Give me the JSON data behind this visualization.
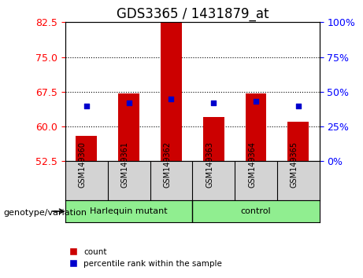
{
  "title": "GDS3365 / 1431879_at",
  "samples": [
    "GSM149360",
    "GSM149361",
    "GSM149362",
    "GSM149363",
    "GSM149364",
    "GSM149365"
  ],
  "red_values": [
    58.0,
    67.2,
    83.5,
    62.0,
    67.2,
    61.0
  ],
  "blue_values_pct": [
    40,
    42,
    45,
    42,
    43,
    40
  ],
  "ylim_left": [
    52.5,
    82.5
  ],
  "ylim_right": [
    0,
    100
  ],
  "yticks_left": [
    52.5,
    60.0,
    67.5,
    75.0,
    82.5
  ],
  "yticks_right": [
    0,
    25,
    50,
    75,
    100
  ],
  "yticks_grid": [
    60.0,
    67.5,
    75.0
  ],
  "bar_color": "#cc0000",
  "dot_color": "#0000cc",
  "bar_width": 0.5,
  "group1_label": "Harlequin mutant",
  "group2_label": "control",
  "genotype_label": "genotype/variation",
  "legend_count": "count",
  "legend_pct": "percentile rank within the sample",
  "title_fontsize": 12,
  "tick_fontsize": 9,
  "label_fontsize": 8
}
